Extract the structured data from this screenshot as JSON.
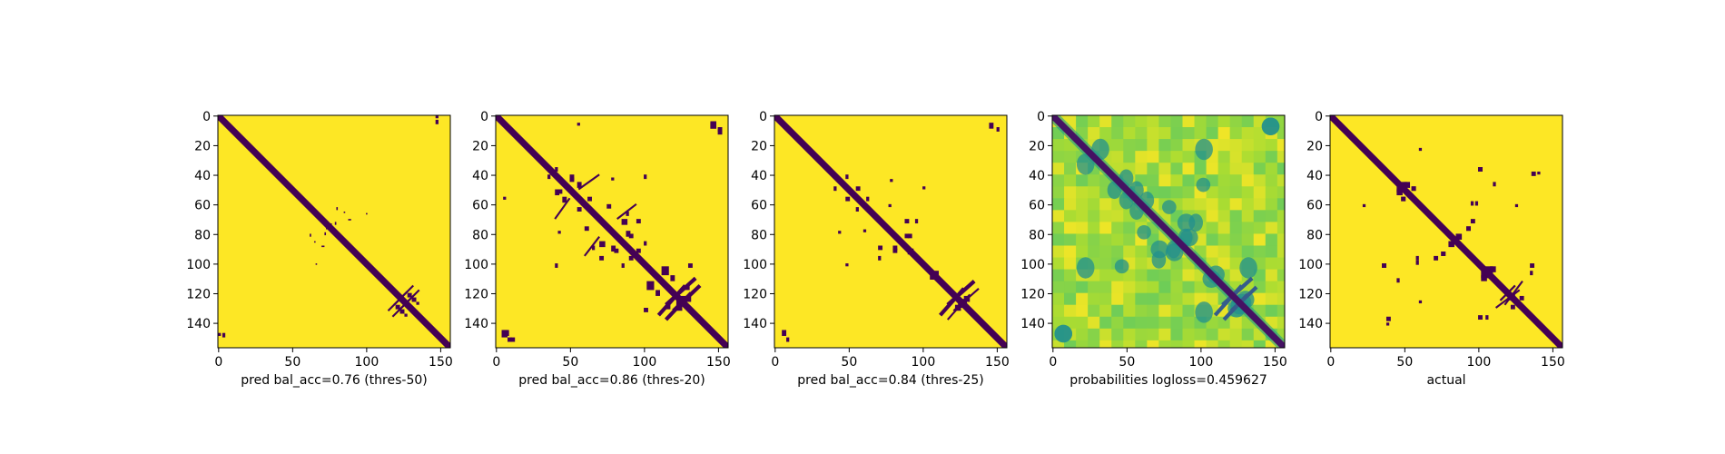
{
  "chart_data": [
    {
      "type": "heatmap",
      "title": "",
      "xlabel": "pred bal_acc=0.76 (thres-50)",
      "ylabel": "",
      "mode": "binary",
      "size": 157,
      "xlim": [
        0,
        157
      ],
      "ylim": [
        157,
        0
      ],
      "xticks": [
        0,
        50,
        100,
        150
      ],
      "yticks": [
        0,
        20,
        40,
        60,
        80,
        100,
        120,
        140
      ],
      "colors": {
        "zero": "#440154",
        "one": "#fde725"
      },
      "diagonal_band": 2,
      "blobs": [
        [
          62,
          80,
          2,
          1
        ],
        [
          65,
          85,
          1,
          1
        ],
        [
          76,
          73,
          1,
          1
        ],
        [
          79,
          72,
          2,
          1
        ],
        [
          88,
          70,
          1,
          2
        ],
        [
          100,
          66,
          1,
          1
        ],
        [
          120,
          128,
          3,
          3
        ],
        [
          123,
          131,
          3,
          3
        ],
        [
          126,
          134,
          2,
          2
        ],
        [
          147,
          3,
          3,
          2
        ],
        [
          0,
          147,
          2,
          2
        ]
      ],
      "lines": [
        [
          115,
          132,
          128,
          119,
          1
        ],
        [
          118,
          136,
          132,
          122,
          1
        ]
      ]
    },
    {
      "type": "heatmap",
      "title": "",
      "xlabel": "pred bal_acc=0.86 (thres-20)",
      "ylabel": "",
      "mode": "binary",
      "size": 157,
      "xlim": [
        0,
        157
      ],
      "ylim": [
        157,
        0
      ],
      "xticks": [
        0,
        50,
        100,
        150
      ],
      "yticks": [
        0,
        20,
        40,
        60,
        80,
        100,
        120,
        140
      ],
      "colors": {
        "zero": "#440154",
        "one": "#fde725"
      },
      "diagonal_band": 2,
      "blobs": [
        [
          35,
          40,
          3,
          2
        ],
        [
          40,
          50,
          4,
          3
        ],
        [
          45,
          55,
          4,
          3
        ],
        [
          55,
          62,
          3,
          3
        ],
        [
          50,
          42,
          3,
          3
        ],
        [
          70,
          85,
          4,
          4
        ],
        [
          80,
          90,
          3,
          3
        ],
        [
          88,
          78,
          4,
          3
        ],
        [
          90,
          95,
          3,
          3
        ],
        [
          95,
          70,
          3,
          3
        ],
        [
          100,
          40,
          3,
          2
        ],
        [
          112,
          102,
          6,
          5
        ],
        [
          118,
          108,
          4,
          3
        ],
        [
          122,
          128,
          4,
          4
        ],
        [
          125,
          122,
          4,
          4
        ],
        [
          128,
          115,
          3,
          3
        ],
        [
          130,
          100,
          3,
          3
        ],
        [
          60,
          75,
          3,
          3
        ],
        [
          65,
          88,
          3,
          2
        ],
        [
          145,
          4,
          5,
          4
        ],
        [
          150,
          8,
          3,
          3
        ],
        [
          5,
          145,
          4,
          4
        ],
        [
          10,
          150,
          3,
          3
        ],
        [
          78,
          42,
          2,
          2
        ],
        [
          85,
          100,
          3,
          2
        ],
        [
          55,
          5,
          2,
          2
        ]
      ],
      "lines": [
        [
          110,
          135,
          128,
          115,
          2
        ],
        [
          115,
          138,
          132,
          120,
          2
        ],
        [
          56,
          50,
          70,
          40,
          1
        ],
        [
          82,
          70,
          95,
          60,
          1
        ]
      ]
    },
    {
      "type": "heatmap",
      "title": "",
      "xlabel": "pred bal_acc=0.84 (thres-25)",
      "ylabel": "",
      "mode": "binary",
      "size": 157,
      "xlim": [
        0,
        157
      ],
      "ylim": [
        157,
        0
      ],
      "xticks": [
        0,
        50,
        100,
        150
      ],
      "yticks": [
        0,
        20,
        40,
        60,
        80,
        100,
        120,
        140
      ],
      "colors": {
        "zero": "#440154",
        "one": "#fde725"
      },
      "diagonal_band": 2,
      "blobs": [
        [
          40,
          48,
          3,
          2
        ],
        [
          48,
          55,
          3,
          3
        ],
        [
          55,
          62,
          3,
          2
        ],
        [
          70,
          88,
          3,
          3
        ],
        [
          80,
          90,
          3,
          3
        ],
        [
          88,
          80,
          3,
          3
        ],
        [
          95,
          70,
          3,
          2
        ],
        [
          100,
          48,
          2,
          2
        ],
        [
          108,
          105,
          3,
          3
        ],
        [
          122,
          128,
          4,
          4
        ],
        [
          126,
          124,
          4,
          4
        ],
        [
          5,
          145,
          4,
          3
        ],
        [
          8,
          150,
          3,
          2
        ],
        [
          60,
          77,
          2,
          2
        ],
        [
          43,
          78,
          2,
          2
        ],
        [
          90,
          92,
          2,
          2
        ]
      ],
      "lines": [
        [
          112,
          135,
          128,
          117,
          2
        ],
        [
          117,
          138,
          132,
          121,
          1
        ]
      ]
    },
    {
      "type": "heatmap",
      "title": "",
      "xlabel": "probabilities logloss=0.459627",
      "ylabel": "",
      "mode": "continuous",
      "size": 157,
      "xlim": [
        0,
        157
      ],
      "ylim": [
        157,
        0
      ],
      "xticks": [
        0,
        50,
        100,
        150
      ],
      "yticks": [
        0,
        20,
        40,
        60,
        80,
        100,
        120,
        140
      ],
      "colormap": "viridis",
      "diagonal_band": 2,
      "blobs": [
        [
          40,
          48,
          5,
          4
        ],
        [
          48,
          55,
          5,
          4
        ],
        [
          55,
          62,
          5,
          4
        ],
        [
          70,
          88,
          5,
          5
        ],
        [
          80,
          90,
          5,
          5
        ],
        [
          88,
          80,
          5,
          4
        ],
        [
          95,
          70,
          5,
          4
        ],
        [
          100,
          45,
          4,
          4
        ],
        [
          108,
          105,
          5,
          5
        ],
        [
          122,
          128,
          5,
          5
        ],
        [
          126,
          124,
          5,
          5
        ],
        [
          5,
          145,
          5,
          5
        ],
        [
          145,
          5,
          5,
          5
        ],
        [
          60,
          77,
          4,
          4
        ],
        [
          30,
          20,
          6,
          5
        ],
        [
          20,
          100,
          6,
          5
        ],
        [
          100,
          130,
          6,
          5
        ]
      ],
      "lines": [
        [
          110,
          135,
          128,
          115,
          2
        ],
        [
          116,
          138,
          132,
          121,
          2
        ]
      ]
    },
    {
      "type": "heatmap",
      "title": "",
      "xlabel": "actual",
      "ylabel": "",
      "mode": "binary",
      "size": 157,
      "xlim": [
        0,
        157
      ],
      "ylim": [
        157,
        0
      ],
      "xticks": [
        0,
        50,
        100,
        150
      ],
      "yticks": [
        0,
        20,
        40,
        60,
        80,
        100,
        120,
        140
      ],
      "colors": {
        "zero": "#440154",
        "one": "#fde725"
      },
      "diagonal_band": 2,
      "blobs": [
        [
          45,
          48,
          4,
          4
        ],
        [
          50,
          45,
          4,
          4
        ],
        [
          48,
          55,
          3,
          3
        ],
        [
          55,
          48,
          3,
          3
        ],
        [
          80,
          85,
          4,
          4
        ],
        [
          85,
          80,
          3,
          3
        ],
        [
          75,
          92,
          3,
          3
        ],
        [
          92,
          75,
          3,
          3
        ],
        [
          102,
          105,
          5,
          5
        ],
        [
          108,
          102,
          4,
          4
        ],
        [
          120,
          122,
          3,
          3
        ],
        [
          122,
          128,
          3,
          3
        ],
        [
          100,
          35,
          3,
          3
        ],
        [
          98,
          58,
          3,
          2
        ],
        [
          110,
          45,
          3,
          2
        ],
        [
          100,
          135,
          3,
          3
        ],
        [
          95,
          70,
          3,
          3
        ],
        [
          35,
          100,
          3,
          3
        ],
        [
          38,
          140,
          2,
          2
        ],
        [
          136,
          38,
          3,
          3
        ],
        [
          125,
          60,
          2,
          2
        ],
        [
          135,
          105,
          3,
          2
        ],
        [
          58,
          95,
          3,
          2
        ],
        [
          22,
          60,
          2,
          2
        ]
      ],
      "lines": [
        [
          115,
          125,
          125,
          115,
          1
        ],
        [
          112,
          130,
          128,
          118,
          1
        ]
      ]
    }
  ]
}
